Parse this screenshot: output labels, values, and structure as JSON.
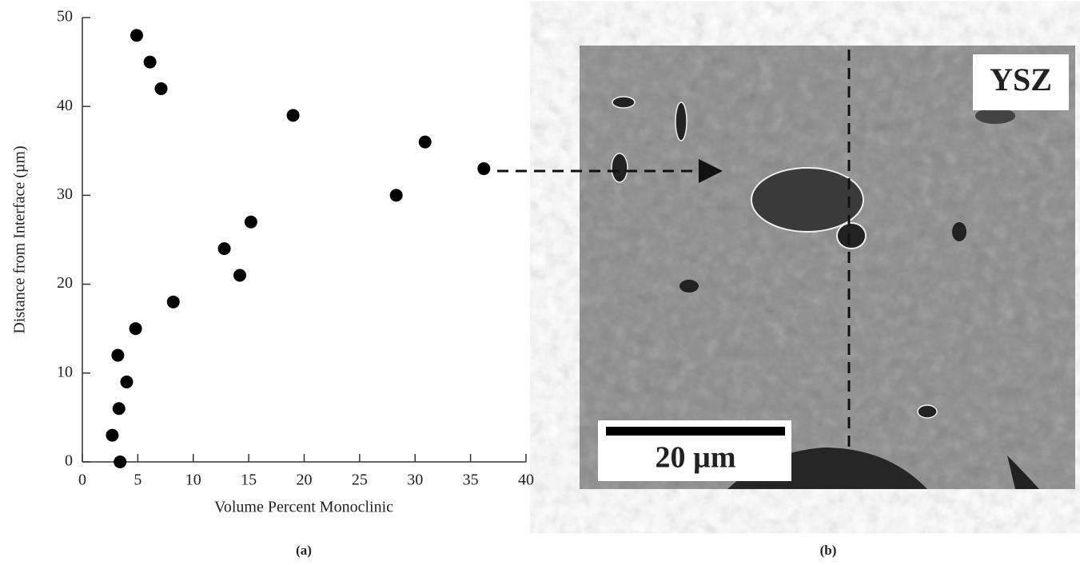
{
  "chart_data": {
    "type": "scatter",
    "xlabel": "Volume Percent Monoclinic",
    "ylabel": "Distance from Interface (µm)",
    "x": [
      3.4,
      2.7,
      3.3,
      4.0,
      3.2,
      4.8,
      8.2,
      14.2,
      12.8,
      15.2,
      28.3,
      36.2,
      30.9,
      19.0,
      7.1,
      6.1,
      4.9
    ],
    "values": [
      0,
      3,
      6,
      9,
      12,
      15,
      18,
      21,
      24,
      27,
      30,
      33,
      36,
      39,
      42,
      45,
      48
    ],
    "color": "#000000",
    "xlim": [
      0,
      40
    ],
    "xticks": [
      0,
      5,
      10,
      15,
      20,
      25,
      30,
      35,
      40
    ],
    "ylim": [
      0,
      50
    ],
    "yticks": [
      0,
      10,
      20,
      30,
      40,
      50
    ],
    "grid": false
  },
  "panel_labels": [
    "(a)",
    "(b)"
  ],
  "micrograph": {
    "label": "YSZ",
    "scale_bar": "20 µm"
  }
}
